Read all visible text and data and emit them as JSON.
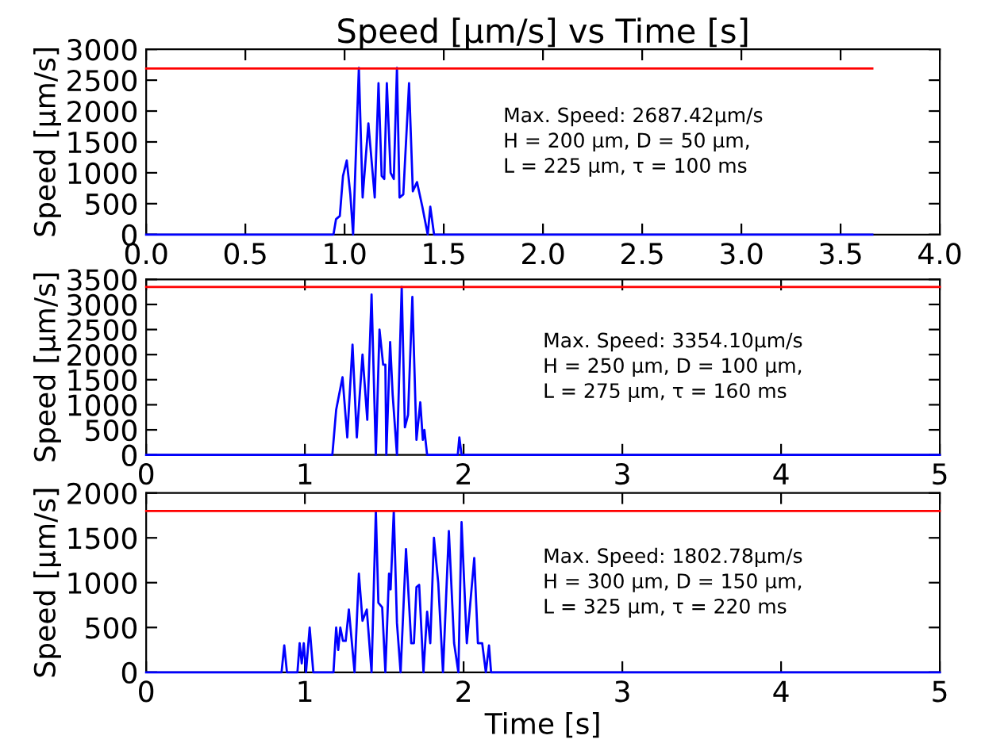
{
  "chart_data": [
    {
      "type": "line",
      "title": "Speed [μm/s] vs Time [s]",
      "ylabel": "Speed [μm/s]",
      "xlim": [
        0,
        4
      ],
      "xticks": [
        {
          "value": 0,
          "label": "0.0"
        },
        {
          "value": 0.5,
          "label": "0.5"
        },
        {
          "value": 1,
          "label": "1.0"
        },
        {
          "value": 1.5,
          "label": "1.5"
        },
        {
          "value": 2,
          "label": "2.0"
        },
        {
          "value": 2.5,
          "label": "2.5"
        },
        {
          "value": 3,
          "label": "3.0"
        },
        {
          "value": 3.5,
          "label": "3.5"
        },
        {
          "value": 4,
          "label": "4.0"
        }
      ],
      "ylim": [
        0,
        3000
      ],
      "yticks": [
        0,
        500,
        1000,
        1500,
        2000,
        2500,
        3000
      ],
      "grid": false,
      "legend": false,
      "annotations": [
        "Max. Speed: 2687.42μm/s\nH = 200 μm, D = 50 μm,\nL = 225 μm, τ = 100 ms"
      ],
      "series": [
        {
          "color": "#0000ff",
          "x": [
            0,
            0.944,
            0.957,
            0.976,
            0.992,
            1.011,
            1.029,
            1.043,
            1.072,
            1.091,
            1.12,
            1.152,
            1.171,
            1.187,
            1.2,
            1.213,
            1.232,
            1.248,
            1.264,
            1.277,
            1.296,
            1.325,
            1.344,
            1.365,
            1.392,
            1.419,
            1.432,
            1.451,
            3.66
          ],
          "values": [
            0,
            0,
            250,
            300,
            950,
            1200,
            650,
            0,
            2700,
            600,
            1800,
            600,
            2450,
            950,
            900,
            2450,
            1000,
            900,
            2700,
            600,
            650,
            2450,
            700,
            850,
            450,
            0,
            450,
            0,
            0
          ]
        },
        {
          "color": "#ff0000",
          "x": [
            0,
            3.66
          ],
          "values": [
            2690,
            2690
          ]
        }
      ]
    },
    {
      "type": "line",
      "ylabel": "Speed [μm/s]",
      "xlim": [
        0,
        5
      ],
      "xticks": [
        0,
        1,
        2,
        3,
        4,
        5
      ],
      "ylim": [
        0,
        3500
      ],
      "yticks": [
        0,
        500,
        1000,
        1500,
        2000,
        2500,
        3000,
        3500
      ],
      "grid": false,
      "legend": false,
      "annotations": [
        "Max. Speed: 3354.10μm/s\nH = 250 μm, D = 100 μm,\nL = 275 μm, τ = 160 ms"
      ],
      "series": [
        {
          "color": "#0000ff",
          "x": [
            0,
            1.173,
            1.197,
            1.237,
            1.267,
            1.3,
            1.327,
            1.363,
            1.393,
            1.42,
            1.447,
            1.47,
            1.493,
            1.507,
            1.513,
            1.537,
            1.553,
            1.58,
            1.61,
            1.63,
            1.65,
            1.677,
            1.703,
            1.727,
            1.743,
            1.753,
            1.77,
            1.963,
            1.973,
            1.987,
            5
          ],
          "values": [
            0,
            0,
            900,
            1550,
            350,
            2200,
            350,
            2000,
            700,
            3200,
            0,
            2500,
            1800,
            1800,
            0,
            2250,
            1200,
            0,
            3350,
            550,
            800,
            3150,
            300,
            1050,
            300,
            500,
            0,
            0,
            350,
            0,
            0
          ]
        },
        {
          "color": "#ff0000",
          "x": [
            0,
            5
          ],
          "values": [
            3350,
            3350
          ]
        }
      ]
    },
    {
      "type": "line",
      "ylabel": "Speed [μm/s]",
      "xlabel": "Time [s]",
      "xlim": [
        0,
        5
      ],
      "xticks": [
        0,
        1,
        2,
        3,
        4,
        5
      ],
      "ylim": [
        0,
        2000
      ],
      "yticks": [
        0,
        500,
        1000,
        1500,
        2000
      ],
      "grid": false,
      "legend": false,
      "annotations": [
        "Max. Speed: 1802.78μm/s\nH = 300 μm, D = 150 μm,\nL = 325 μm, τ = 220 ms"
      ],
      "series": [
        {
          "color": "#0000ff",
          "x": [
            0,
            0.853,
            0.87,
            0.887,
            0.953,
            0.967,
            0.98,
            0.993,
            1.007,
            1.03,
            1.053,
            1.18,
            1.197,
            1.21,
            1.223,
            1.24,
            1.257,
            1.277,
            1.313,
            1.34,
            1.363,
            1.39,
            1.42,
            1.447,
            1.463,
            1.487,
            1.507,
            1.53,
            1.54,
            1.56,
            1.58,
            1.603,
            1.637,
            1.67,
            1.687,
            1.703,
            1.72,
            1.747,
            1.77,
            1.79,
            1.813,
            1.84,
            1.87,
            1.907,
            1.94,
            1.967,
            1.987,
            2.02,
            2.067,
            2.09,
            2.117,
            2.14,
            2.16,
            2.173,
            5
          ],
          "values": [
            0,
            0,
            300,
            0,
            0,
            325,
            100,
            325,
            0,
            500,
            0,
            0,
            500,
            250,
            500,
            350,
            350,
            700,
            0,
            1100,
            575,
            700,
            0,
            1800,
            775,
            725,
            0,
            1100,
            925,
            1800,
            550,
            0,
            1375,
            325,
            325,
            950,
            975,
            0,
            675,
            325,
            1500,
            1000,
            0,
            1575,
            325,
            0,
            1675,
            325,
            1275,
            325,
            325,
            0,
            300,
            0,
            0
          ]
        },
        {
          "color": "#ff0000",
          "x": [
            0,
            5
          ],
          "values": [
            1800,
            1800
          ]
        }
      ]
    }
  ]
}
